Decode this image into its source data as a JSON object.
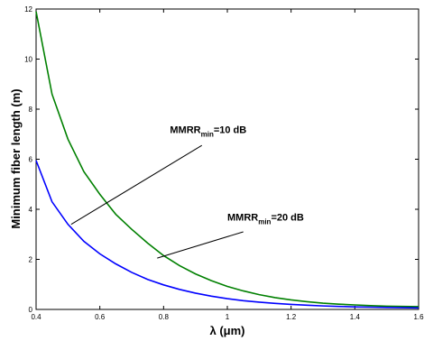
{
  "chart_data": {
    "type": "line",
    "xlabel": "λ (μm)",
    "ylabel": "Minimum fiber length (m)",
    "xlim": [
      0.4,
      1.6
    ],
    "ylim": [
      0,
      12
    ],
    "xticks": [
      0.4,
      0.6,
      0.8,
      1,
      1.2,
      1.4,
      1.6
    ],
    "yticks": [
      0,
      2,
      4,
      6,
      8,
      10,
      12
    ],
    "xtick_labels": [
      "0.4",
      "0.6",
      "0.8",
      "1",
      "1.2",
      "1.4",
      "1.6"
    ],
    "ytick_labels": [
      "0",
      "2",
      "4",
      "6",
      "8",
      "10",
      "12"
    ],
    "grid": false,
    "series": [
      {
        "color": "#008000",
        "x": [
          0.4,
          0.45,
          0.5,
          0.55,
          0.6,
          0.65,
          0.7,
          0.75,
          0.8,
          0.85,
          0.9,
          0.95,
          1.0,
          1.05,
          1.1,
          1.15,
          1.2,
          1.25,
          1.3,
          1.35,
          1.4,
          1.45,
          1.5,
          1.55,
          1.6
        ],
        "y": [
          11.9,
          8.6,
          6.8,
          5.5,
          4.6,
          3.8,
          3.2,
          2.65,
          2.15,
          1.75,
          1.42,
          1.15,
          0.92,
          0.74,
          0.59,
          0.47,
          0.38,
          0.31,
          0.25,
          0.21,
          0.18,
          0.15,
          0.13,
          0.12,
          0.11
        ]
      },
      {
        "color": "#0000ff",
        "x": [
          0.4,
          0.45,
          0.5,
          0.55,
          0.6,
          0.65,
          0.7,
          0.75,
          0.8,
          0.85,
          0.9,
          0.95,
          1.0,
          1.05,
          1.1,
          1.15,
          1.2,
          1.25,
          1.3,
          1.35,
          1.4,
          1.45,
          1.5,
          1.55,
          1.6
        ],
        "y": [
          5.95,
          4.3,
          3.4,
          2.72,
          2.22,
          1.82,
          1.48,
          1.2,
          0.98,
          0.8,
          0.65,
          0.53,
          0.43,
          0.35,
          0.29,
          0.24,
          0.2,
          0.17,
          0.14,
          0.12,
          0.1,
          0.09,
          0.08,
          0.07,
          0.06
        ]
      }
    ],
    "annotations": [
      {
        "label_main": "MMRR",
        "label_sub": "min",
        "label_rest": "=10 dB",
        "text_x": 0.82,
        "text_y": 7.05,
        "arrow_from": [
          0.92,
          6.55
        ],
        "arrow_to": [
          0.51,
          3.4
        ]
      },
      {
        "label_main": "MMRR",
        "label_sub": "min",
        "label_rest": "=20 dB",
        "text_x": 1.0,
        "text_y": 3.55,
        "arrow_from": [
          1.05,
          3.1
        ],
        "arrow_to": [
          0.78,
          2.05
        ]
      }
    ]
  }
}
